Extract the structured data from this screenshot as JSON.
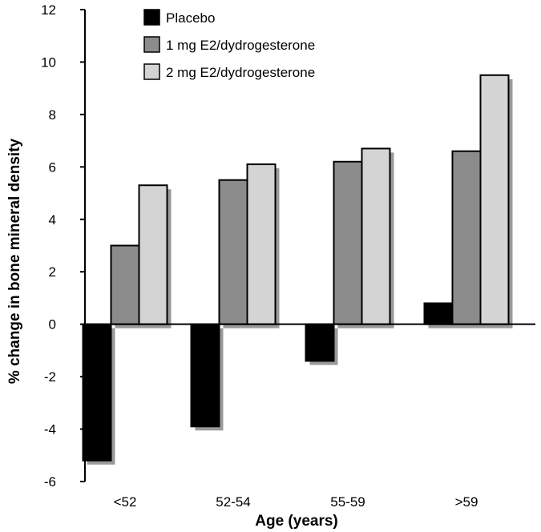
{
  "chart_data": {
    "type": "bar",
    "title": "",
    "xlabel": "Age (years)",
    "ylabel": "% change in bone mineral density",
    "ylim": [
      -6,
      12
    ],
    "yticks": [
      -6,
      -4,
      -2,
      0,
      2,
      4,
      6,
      8,
      10,
      12
    ],
    "categories": [
      "<52",
      "52-54",
      "55-59",
      ">59"
    ],
    "series": [
      {
        "name": "Placebo",
        "color": "#000000",
        "values": [
          -5.2,
          -3.9,
          -1.4,
          0.8
        ]
      },
      {
        "name": "1 mg E2/dydrogesterone",
        "color": "#8c8c8c",
        "values": [
          3.0,
          5.5,
          6.2,
          6.6
        ]
      },
      {
        "name": "2 mg E2/dydrogesterone",
        "color": "#d4d4d4",
        "values": [
          5.3,
          6.1,
          6.7,
          9.5
        ]
      }
    ],
    "legend_position": "top-left",
    "grid": false
  }
}
